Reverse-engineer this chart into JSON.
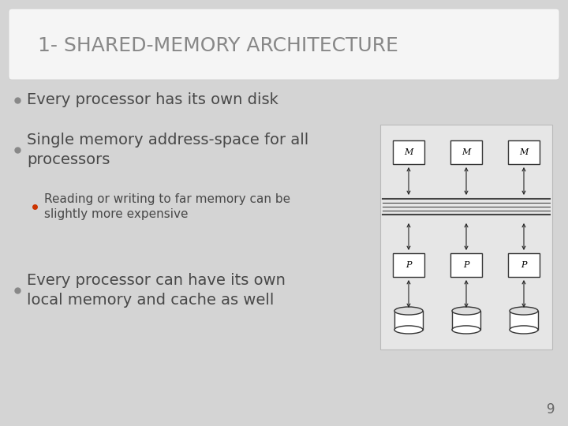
{
  "title": "1- SHARED-MEMORY ARCHITECTURE",
  "title_color": "#888888",
  "title_fontsize": 18,
  "slide_bg": "#d4d4d4",
  "header_bg": "#f5f5f5",
  "bullet1": "Every processor has its own disk",
  "bullet2_line1": "Single memory address-space for all",
  "bullet2_line2": "processors",
  "sub_bullet": "Reading or writing to far memory can be\nslightly more expensive",
  "bullet3_line1": "Every processor can have its own",
  "bullet3_line2": "local memory and cache as well",
  "bullet_color": "#484848",
  "sub_bullet_color": "#484848",
  "sub_bullet_dot_color": "#cc3300",
  "bullet_dot_color": "#888888",
  "page_number": "9",
  "memory_label": "M",
  "processor_label": "P"
}
